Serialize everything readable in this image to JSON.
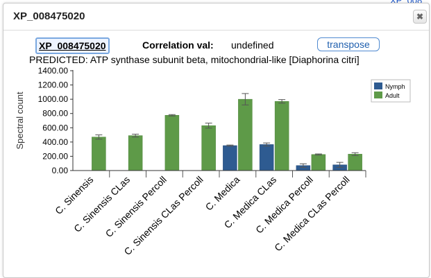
{
  "background_link": "XP_008",
  "dialog": {
    "title": "XP_008475020",
    "close_icon": "close-icon",
    "gene_id": "XP_008475020",
    "correlation_label": "Correlation val:",
    "correlation_value": "undefined",
    "transpose_label": "transpose",
    "subtitle": "PREDICTED: ATP synthase subunit beta, mitochondrial-like [Diaphorina citri]"
  },
  "chart_data": {
    "type": "bar",
    "title": "",
    "xlabel": "",
    "ylabel": "Spectral count",
    "ylim": [
      0,
      1400
    ],
    "yticks": [
      "0.00",
      "200.00",
      "400.00",
      "600.00",
      "800.00",
      "1000.00",
      "1200.00",
      "1400.00"
    ],
    "grid": false,
    "legend_position": "top-right",
    "error_bars": true,
    "categories": [
      "C. Sinensis",
      "C. Sinensis CLas",
      "C. Sinensis Percoll",
      "C. Sinensis CLas Percoll",
      "C. Medica",
      "C. Medica CLas",
      "C. Medica Percoll",
      "C. Medica CLas Percoll"
    ],
    "series": [
      {
        "name": "Nymph",
        "color": "#2e5b91",
        "values": [
          0,
          0,
          0,
          0,
          350,
          365,
          70,
          80
        ],
        "errors": [
          0,
          0,
          0,
          0,
          8,
          22,
          25,
          35
        ]
      },
      {
        "name": "Adult",
        "color": "#5e9a48",
        "values": [
          470,
          490,
          775,
          630,
          1000,
          970,
          225,
          230
        ],
        "errors": [
          30,
          20,
          10,
          35,
          80,
          25,
          8,
          20
        ]
      }
    ]
  }
}
